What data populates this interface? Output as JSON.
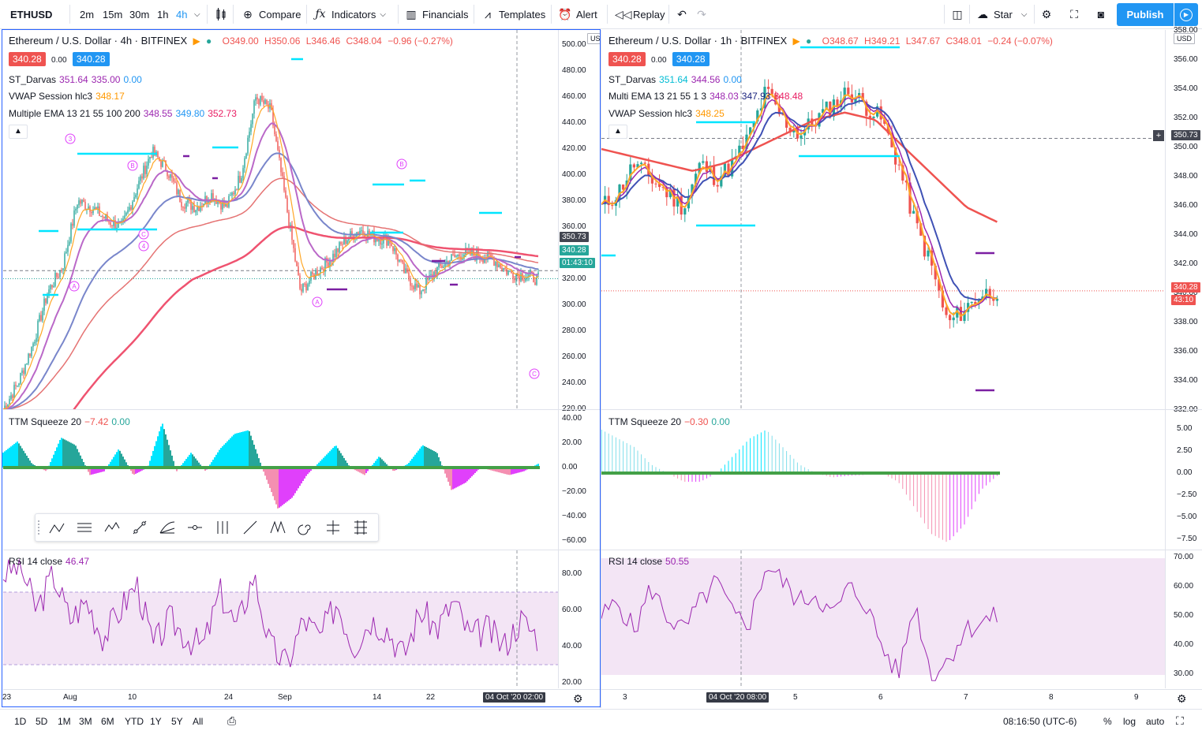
{
  "toolbar": {
    "symbol": "ETHUSD",
    "intervals": [
      "2m",
      "15m",
      "30m",
      "1h",
      "4h"
    ],
    "active_interval": "4h",
    "compare": "Compare",
    "indicators": "Indicators",
    "financials": "Financials",
    "templates": "Templates",
    "alert": "Alert",
    "replay": "Replay",
    "layout_name": "Star",
    "publish": "Publish"
  },
  "left": {
    "title": "Ethereum / U.S. Dollar · 4h · BITFINEX",
    "ohlc": {
      "o": "O349.00",
      "h": "H350.06",
      "l": "L346.46",
      "c": "C348.04",
      "chg": "−0.96 (−0.27%)"
    },
    "bid": "340.28",
    "spread": "0.00",
    "ask": "340.28",
    "darvas": {
      "name": "ST_Darvas",
      "v1": "351.64",
      "v2": "335.00",
      "v3": "0.00"
    },
    "vwap": {
      "name": "VWAP Session hlc3",
      "v": "348.17"
    },
    "ema": {
      "name": "Multiple EMA 13 21 55 100 200",
      "v1": "348.55",
      "v2": "349.80",
      "v3": "352.73"
    },
    "currency": "USD",
    "yticks": [
      "500.00",
      "480.00",
      "460.00",
      "440.00",
      "420.00",
      "400.00",
      "380.00",
      "360.00",
      "340.00",
      "320.00",
      "300.00",
      "280.00",
      "260.00",
      "240.00",
      "220.00"
    ],
    "price_tags": [
      "350.73",
      "340.28",
      "01:43:10"
    ],
    "ttm": {
      "name": "TTM Squeeze 20",
      "v1": "−7.42",
      "v2": "0.00",
      "yticks": [
        "40.00",
        "20.00",
        "0.00",
        "−20.00",
        "−40.00",
        "−60.00"
      ]
    },
    "rsi": {
      "name": "RSI 14 close",
      "v": "46.47",
      "yticks": [
        "80.00",
        "60.00",
        "40.00",
        "20.00"
      ]
    },
    "xticks": [
      "23",
      "Aug",
      "10",
      "24",
      "Sep",
      "14",
      "22"
    ],
    "xcursor": "04 Oct '20  02:00",
    "waves": [
      "3",
      "B",
      "C",
      "4",
      "A",
      "B",
      "A",
      "C"
    ]
  },
  "right": {
    "title": "Ethereum / U.S. Dollar · 1h · BITFINEX",
    "ohlc": {
      "o": "O348.67",
      "h": "H349.21",
      "l": "L347.67",
      "c": "C348.01",
      "chg": "−0.24 (−0.07%)"
    },
    "bid": "340.28",
    "spread": "0.00",
    "ask": "340.28",
    "darvas": {
      "name": "ST_Darvas",
      "v1": "351.64",
      "v2": "344.56",
      "v3": "0.00"
    },
    "multi": {
      "name": "Multi EMA 13 21 55 1 3",
      "v1": "348.03",
      "v2": "347.93",
      "v3": "348.48"
    },
    "vwap": {
      "name": "VWAP Session hlc3",
      "v": "348.25"
    },
    "currency": "USD",
    "yticks": [
      "358.00",
      "356.00",
      "354.00",
      "352.00",
      "350.00",
      "348.00",
      "346.00",
      "344.00",
      "342.00",
      "340.00",
      "338.00",
      "336.00",
      "334.00",
      "332.00"
    ],
    "price_tags": [
      "350.73",
      "340.28",
      "43:10"
    ],
    "ttm": {
      "name": "TTM Squeeze 20",
      "v1": "−0.30",
      "v2": "0.00",
      "yticks": [
        "5.00",
        "2.50",
        "0.00",
        "−2.50",
        "−5.00",
        "−7.50"
      ]
    },
    "rsi": {
      "name": "RSI 14 close",
      "v": "50.55",
      "yticks": [
        "70.00",
        "60.00",
        "50.00",
        "40.00",
        "30.00"
      ]
    },
    "xticks": [
      "3",
      "5",
      "6",
      "7",
      "8",
      "9"
    ],
    "xcursor": "04 Oct '20  08:00"
  },
  "bottom": {
    "ranges": [
      "1D",
      "5D",
      "1M",
      "3M",
      "6M",
      "YTD",
      "1Y",
      "5Y",
      "All"
    ],
    "time": "08:16:50 (UTC-6)",
    "pct": "%",
    "log": "log",
    "auto": "auto"
  },
  "colors": {
    "up": "#26a69a",
    "down": "#ef5350",
    "blue": "#2196f3",
    "orange": "#ff9800",
    "pink": "#e91e63",
    "cyan": "#00e5ff",
    "purple": "#9c27b0"
  }
}
